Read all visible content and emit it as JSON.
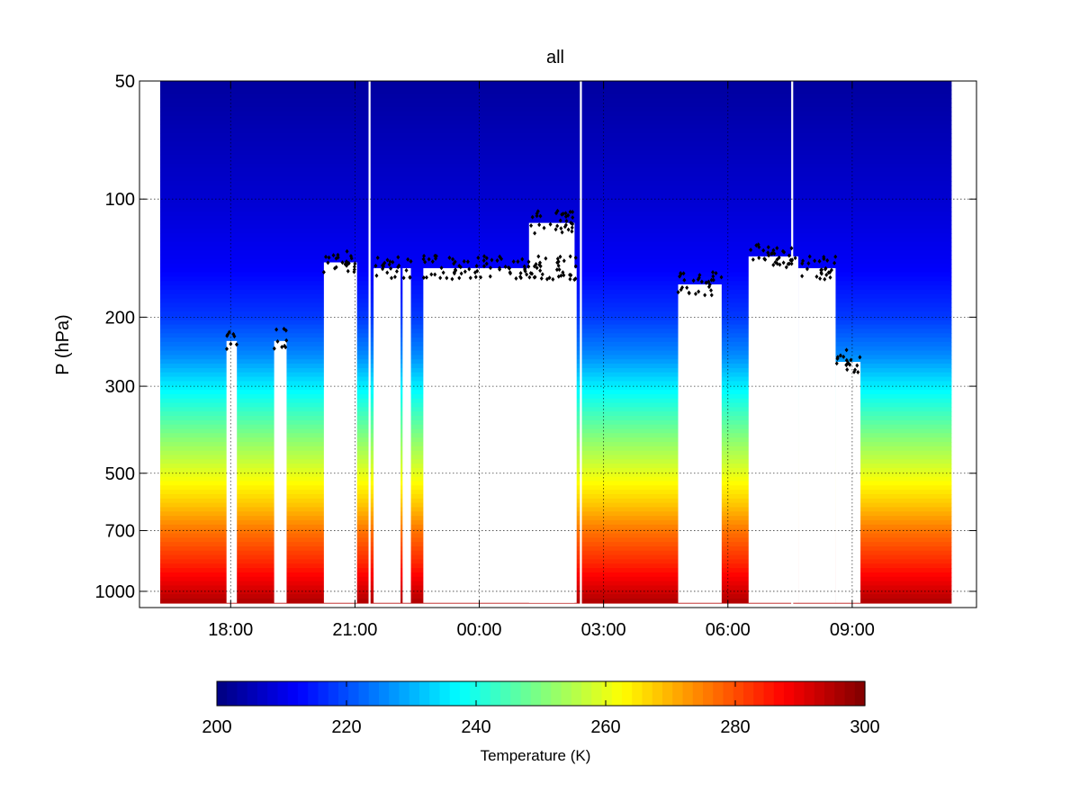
{
  "chart_data": {
    "type": "heatmap",
    "title": "all",
    "ylabel": "P (hPa)",
    "xlabel": "",
    "yscale": "log",
    "yaxis_reversed": true,
    "ylim": [
      50,
      1100
    ],
    "yticks": [
      {
        "value": 50,
        "label": "50"
      },
      {
        "value": 100,
        "label": "100"
      },
      {
        "value": 200,
        "label": "200"
      },
      {
        "value": 300,
        "label": "300"
      },
      {
        "value": 500,
        "label": "500"
      },
      {
        "value": 700,
        "label": "700"
      },
      {
        "value": 1000,
        "label": "1000"
      }
    ],
    "xlim_hours": [
      15.8,
      36.0
    ],
    "xticks": [
      {
        "value": 18,
        "label": "18:00"
      },
      {
        "value": 21,
        "label": "21:00"
      },
      {
        "value": 24,
        "label": "00:00"
      },
      {
        "value": 27,
        "label": "03:00"
      },
      {
        "value": 30,
        "label": "06:00"
      },
      {
        "value": 33,
        "label": "09:00"
      }
    ],
    "grid": true,
    "data_extent_hours": [
      16.3,
      35.4
    ],
    "vertical_gaps_hours": [
      21.35,
      26.45,
      31.55
    ],
    "cloud_top_profile": {
      "description": "approximate pressure (hPa) where data begins (top of blank region below) over time",
      "points": [
        [
          16.3,
          50
        ],
        [
          17.3,
          50
        ],
        [
          17.9,
          50
        ],
        [
          18.2,
          50
        ],
        [
          19.6,
          50
        ],
        [
          20.0,
          50
        ],
        [
          20.5,
          50
        ],
        [
          21.0,
          50
        ]
      ]
    },
    "blank_regions": [
      {
        "x0": 20.25,
        "x1": 21.05,
        "p_top": 145
      },
      {
        "x0": 21.45,
        "x1": 22.1,
        "p_top": 150
      },
      {
        "x0": 22.15,
        "x1": 22.35,
        "p_top": 150
      },
      {
        "x0": 22.65,
        "x1": 26.35,
        "p_top": 150
      },
      {
        "x0": 25.2,
        "x1": 26.3,
        "p_top": 115
      },
      {
        "x0": 28.8,
        "x1": 29.85,
        "p_top": 165
      },
      {
        "x0": 30.5,
        "x1": 31.7,
        "p_top": 140
      },
      {
        "x0": 31.7,
        "x1": 32.6,
        "p_top": 150
      },
      {
        "x0": 32.6,
        "x1": 33.2,
        "p_top": 260
      },
      {
        "x0": 17.9,
        "x1": 18.15,
        "p_top": 230
      },
      {
        "x0": 19.05,
        "x1": 19.35,
        "p_top": 230
      }
    ],
    "colorbar": {
      "label": "Temperature (K)",
      "range": [
        200,
        300
      ],
      "ticks": [
        {
          "value": 200,
          "label": "200"
        },
        {
          "value": 220,
          "label": "220"
        },
        {
          "value": 240,
          "label": "240"
        },
        {
          "value": 260,
          "label": "260"
        },
        {
          "value": 280,
          "label": "280"
        },
        {
          "value": 300,
          "label": "300"
        }
      ],
      "colormap": "jet"
    },
    "temperature_profile": [
      {
        "p": 50,
        "t": 203
      },
      {
        "p": 100,
        "t": 208
      },
      {
        "p": 150,
        "t": 212
      },
      {
        "p": 200,
        "t": 218
      },
      {
        "p": 250,
        "t": 226
      },
      {
        "p": 300,
        "t": 236
      },
      {
        "p": 400,
        "t": 250
      },
      {
        "p": 500,
        "t": 260
      },
      {
        "p": 600,
        "t": 268
      },
      {
        "p": 700,
        "t": 276
      },
      {
        "p": 850,
        "t": 284
      },
      {
        "p": 1000,
        "t": 292
      },
      {
        "p": 1100,
        "t": 297
      }
    ],
    "marker_series": {
      "name": "cloud detections",
      "marker": "diamond",
      "color": "#000000"
    }
  }
}
